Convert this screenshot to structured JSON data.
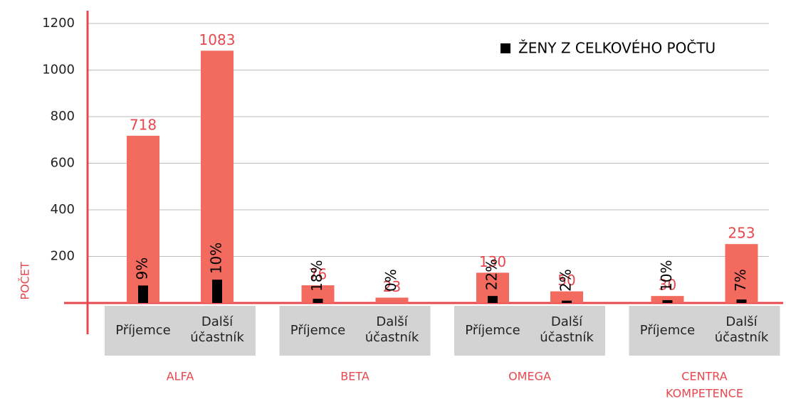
{
  "chart_data": {
    "type": "bar",
    "y_label": "POČET",
    "groups": [
      [
        "ALFA"
      ],
      [
        "BETA"
      ],
      [
        "OMEGA"
      ],
      [
        "CENTRA",
        "KOMPETENCE"
      ]
    ],
    "categories": [
      [
        "Příjemce"
      ],
      [
        "Další",
        "účastník"
      ],
      [
        "Příjemce"
      ],
      [
        "Další",
        "účastník"
      ],
      [
        "Příjemce"
      ],
      [
        "Další",
        "účastník"
      ],
      [
        "Příjemce"
      ],
      [
        "Další",
        "účastník"
      ]
    ],
    "series": [
      {
        "color": "#f26b5e",
        "values": [
          718,
          1083,
          76,
          23,
          130,
          50,
          30,
          253
        ]
      },
      {
        "name": "ŽENY Z CELKOVÉHO POČTU",
        "color": "#000000",
        "values": [
          75,
          100,
          18,
          0,
          30,
          10,
          12,
          15
        ],
        "shares": [
          9,
          10,
          18,
          0,
          22,
          2,
          10,
          7
        ],
        "share_labels": [
          "9%",
          "10%",
          "18%",
          "0%",
          "22%",
          "2%",
          "10%",
          "7%"
        ]
      }
    ],
    "ylim": [
      0,
      1200
    ],
    "yticks": [
      200,
      400,
      600,
      800,
      1000,
      1200
    ],
    "grid": true,
    "legend": "top-right"
  }
}
